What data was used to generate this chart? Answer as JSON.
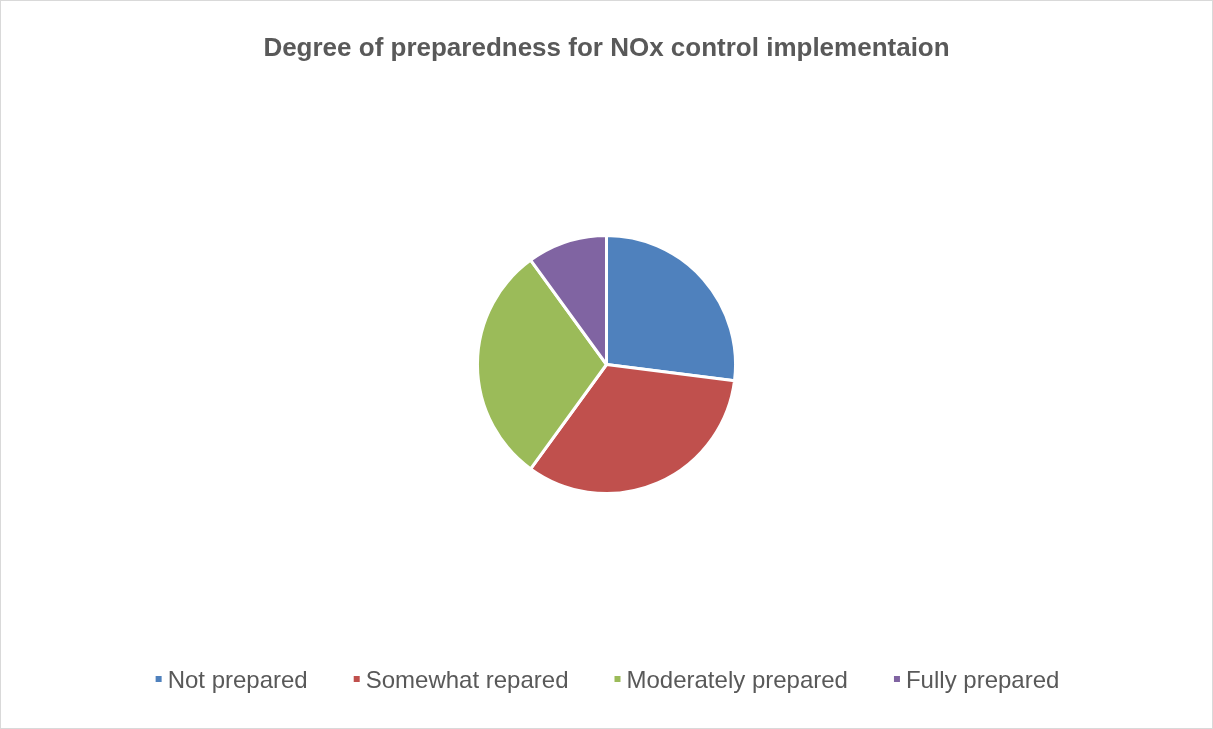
{
  "chart_data": {
    "type": "pie",
    "title": "Degree of preparedness for NOx control implementaion",
    "categories": [
      "Not prepared",
      "Somewhat repared",
      "Moderately prepared",
      "Fully prepared"
    ],
    "values": [
      27,
      33,
      30,
      10
    ],
    "colors": [
      "#4f81bd",
      "#c0504d",
      "#9bbb59",
      "#8064a2"
    ],
    "legend": "bottom"
  }
}
